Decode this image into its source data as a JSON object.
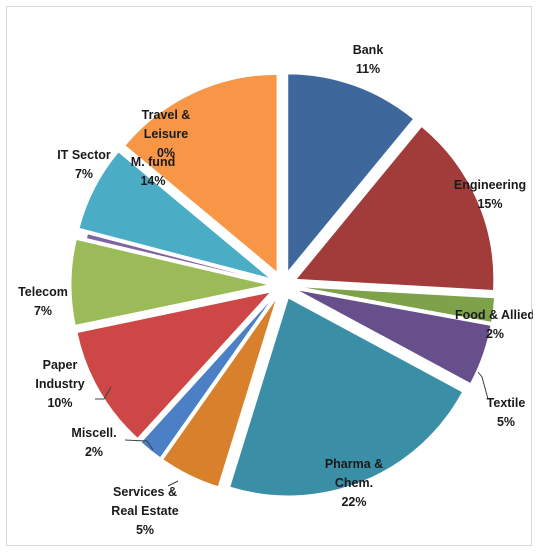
{
  "chart_data": {
    "type": "pie",
    "exploded": true,
    "start_angle_deg": 0,
    "direction": "clockwise",
    "slices": [
      {
        "label_lines": [
          "Bank",
          "11%"
        ],
        "value": 11,
        "color": "#3e679c"
      },
      {
        "label_lines": [
          "Engineering",
          "15%"
        ],
        "value": 15,
        "color": "#a23c3b"
      },
      {
        "label_lines": [
          "Food & Allied",
          "2%"
        ],
        "value": 2,
        "color": "#7da24a"
      },
      {
        "label_lines": [
          "Textile",
          "5%"
        ],
        "value": 5,
        "color": "#664f8a"
      },
      {
        "label_lines": [
          "Pharma &",
          "Chem.",
          "22%"
        ],
        "value": 22,
        "color": "#3a8ea5"
      },
      {
        "label_lines": [
          "Services &",
          "Real Estate",
          "5%"
        ],
        "value": 5,
        "color": "#d8802b"
      },
      {
        "label_lines": [
          "Miscell.",
          "2%"
        ],
        "value": 2,
        "color": "#4b7fc6"
      },
      {
        "label_lines": [
          "Paper",
          "Industry",
          "10%"
        ],
        "value": 10,
        "color": "#cc4745"
      },
      {
        "label_lines": [
          "Telecom",
          "7%"
        ],
        "value": 7,
        "color": "#9bbb59"
      },
      {
        "label_lines": [
          "Travel &",
          "Leisure",
          "0%"
        ],
        "value": 0.4,
        "color": "#8064a2"
      },
      {
        "label_lines": [
          "IT Sector",
          "7%"
        ],
        "value": 7,
        "color": "#4bacc6"
      },
      {
        "label_lines": [
          "M. fund",
          "14%"
        ],
        "value": 14,
        "color": "#f79646"
      }
    ]
  }
}
